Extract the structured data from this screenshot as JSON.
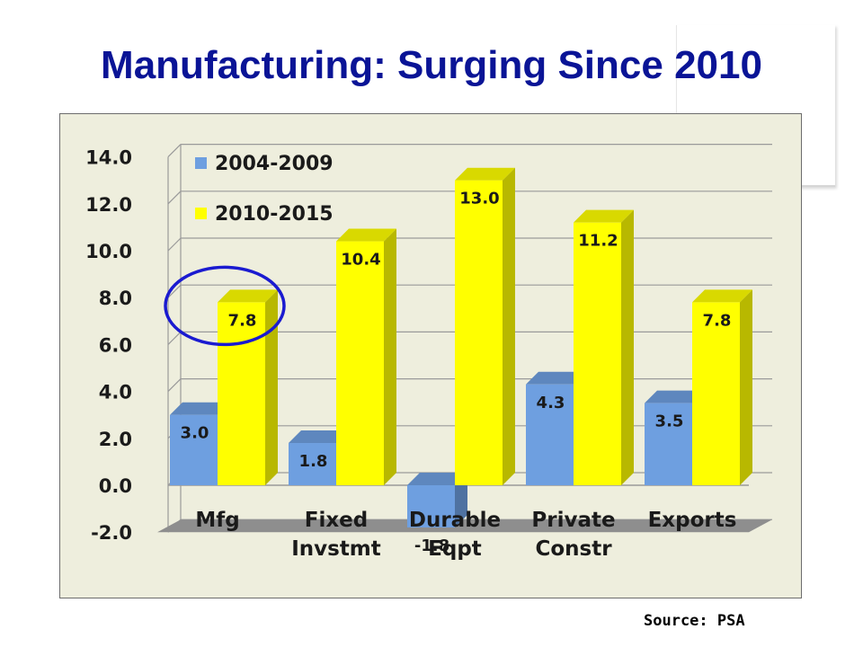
{
  "title": "Manufacturing: Surging Since 2010",
  "source": "Source: PSA",
  "chart_data": {
    "type": "bar",
    "categories": [
      [
        "Mfg"
      ],
      [
        "Fixed",
        "Invstmt"
      ],
      [
        "Durable",
        "Eqpt"
      ],
      [
        "Private",
        "Constr"
      ],
      [
        "Exports"
      ]
    ],
    "series": [
      {
        "name": "2004-2009",
        "values": [
          3.0,
          1.8,
          -1.8,
          4.3,
          3.5
        ]
      },
      {
        "name": "2010-2015",
        "values": [
          7.8,
          10.4,
          13.0,
          11.2,
          7.8
        ]
      }
    ],
    "value_labels": [
      [
        "3.0",
        "1.8",
        "-1.8",
        "4.3",
        "3.5"
      ],
      [
        "7.8",
        "10.4",
        "13.0",
        "11.2",
        "7.8"
      ]
    ],
    "yticks": [
      "-2.0",
      "0.0",
      "2.0",
      "4.0",
      "6.0",
      "8.0",
      "10.0",
      "12.0",
      "14.0"
    ],
    "ylim": [
      -2,
      14
    ],
    "legend_position": "top-left",
    "highlighted_category": "Mfg",
    "colors": {
      "series1": "#6e9fe0",
      "series2": "#ffff00",
      "background": "#eeeedd",
      "highlight": "#1a1ad0"
    }
  }
}
